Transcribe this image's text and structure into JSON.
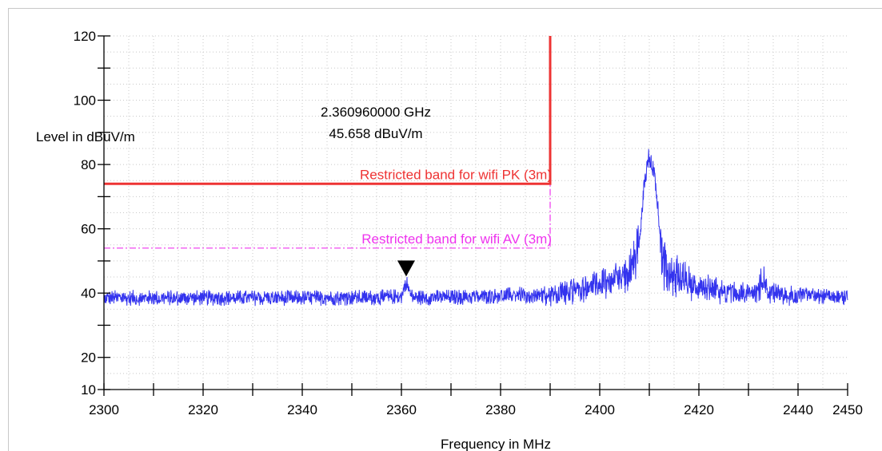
{
  "chart_data": {
    "type": "line",
    "xlabel": "Frequency in MHz",
    "ylabel": "Level in dBuV/m",
    "xlim": [
      2300,
      2450
    ],
    "ylim": [
      10,
      120
    ],
    "x_ticks": [
      2300,
      2320,
      2340,
      2360,
      2380,
      2400,
      2420,
      2440,
      2450
    ],
    "y_ticks": [
      10,
      20,
      40,
      60,
      80,
      100,
      120
    ],
    "grid": true,
    "series": [
      {
        "color": "#3333ee",
        "x": [
          2300,
          2310,
          2320,
          2330,
          2340,
          2350,
          2355,
          2360,
          2361,
          2362,
          2363,
          2370,
          2375,
          2380,
          2385,
          2390,
          2393,
          2396,
          2399,
          2402,
          2404,
          2406,
          2407,
          2408,
          2409,
          2410,
          2411,
          2412,
          2413,
          2414,
          2416,
          2418,
          2420,
          2423,
          2426,
          2430,
          2432,
          2433,
          2434,
          2437,
          2440,
          2445,
          2450
        ],
        "y": [
          38.5,
          38.5,
          38.5,
          38.5,
          38.5,
          38.6,
          38.6,
          39,
          43.5,
          39,
          38.6,
          38.7,
          38.8,
          39.2,
          39.6,
          40.2,
          41.2,
          42.3,
          43.6,
          45,
          46.5,
          49,
          51.5,
          56,
          75,
          83,
          78,
          62,
          52,
          48,
          46,
          44.5,
          43.5,
          42.2,
          41.2,
          40.6,
          42,
          45.5,
          42,
          40,
          39.6,
          39,
          38.6
        ],
        "noise": 2.5
      }
    ],
    "limits": [
      {
        "label": "Restricted band for  wifi  PK (3m)",
        "level": 74,
        "x_start": 2300,
        "x_end": 2390,
        "color": "#ee3333",
        "style": "solid"
      },
      {
        "label": "Restricted band for  wifi  AV (3m)",
        "level": 54,
        "x_start": 2300,
        "x_end": 2390,
        "color": "#ee33ee",
        "style": "dashdot"
      }
    ],
    "marker": {
      "x": 2360.96,
      "y": 45.658,
      "freq_text": "2.360960000 GHz",
      "level_text": "45.658 dBuV/m"
    }
  }
}
